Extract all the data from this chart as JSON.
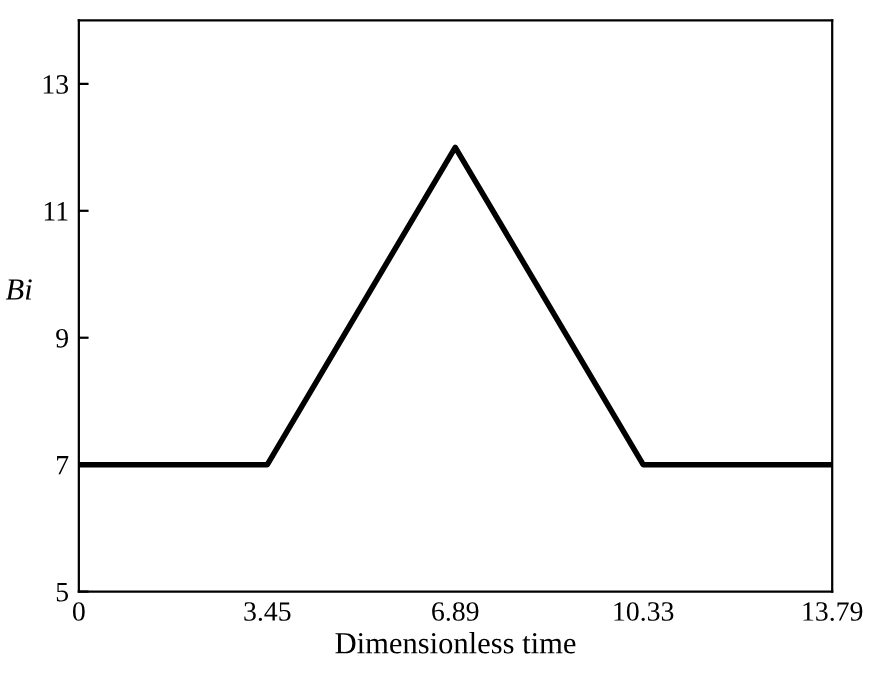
{
  "chart_data": {
    "type": "line",
    "xlabel": "Dimensionless time",
    "ylabel": "Bi",
    "x": [
      0,
      3.45,
      6.89,
      10.33,
      13.79
    ],
    "series": [
      {
        "color": "#000000",
        "values": [
          7,
          7,
          12,
          7,
          7
        ]
      }
    ],
    "xlim": [
      0,
      13.79
    ],
    "ylim": [
      5,
      14
    ],
    "xticks": [
      0,
      3.45,
      6.89,
      10.33,
      13.79
    ],
    "yticks": [
      5,
      7,
      9,
      11,
      13
    ],
    "grid": false,
    "legend": false,
    "marker": "none",
    "line_style": "solid"
  }
}
